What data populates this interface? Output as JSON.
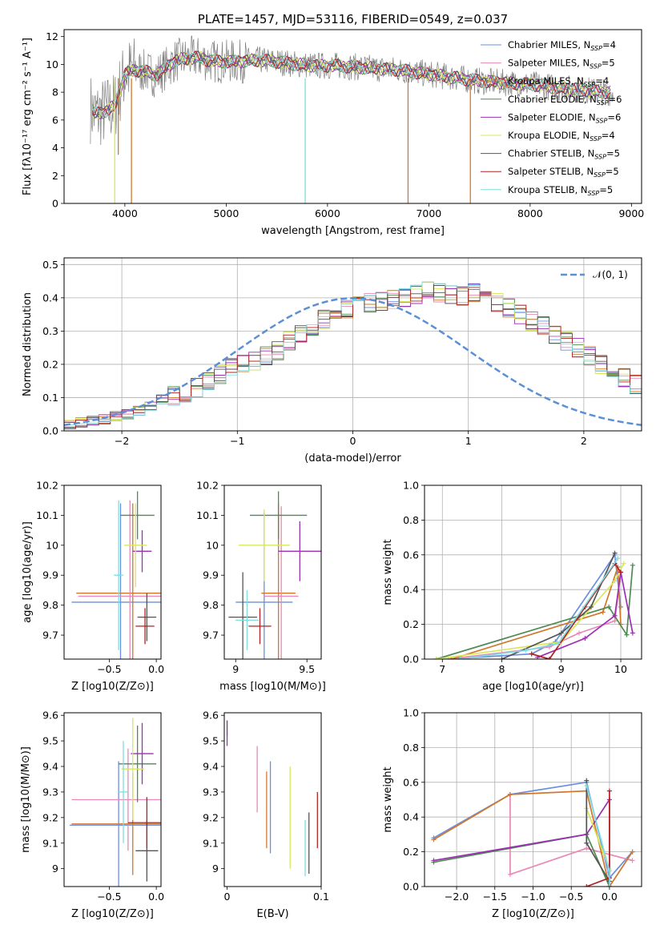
{
  "colors": {
    "c1": "#6a8fe0",
    "c2": "#e889b8",
    "c3": "#d2772a",
    "c4": "#4f8a52",
    "c5": "#9c2fb3",
    "c6": "#d8e85a",
    "c7": "#555555",
    "c8": "#b22222",
    "c9": "#7fdde0",
    "grid": "#b0b0b0",
    "gauss": "#5b8fd6"
  },
  "chart_data": [
    {
      "id": "spectrum",
      "type": "line",
      "title": "PLATE=1457, MJD=53116, FIBERID=0549, z=0.037",
      "xlabel": "wavelength [Angstrom, rest frame]",
      "ylabel": "Flux [fλ10⁻¹⁷ erg cm⁻² s⁻¹ A⁻¹]",
      "xlim": [
        3400,
        9100
      ],
      "ylim": [
        0,
        12.5
      ],
      "xticks": [
        4000,
        5000,
        6000,
        7000,
        8000,
        9000
      ],
      "yticks": [
        0,
        2,
        4,
        6,
        8,
        10,
        12
      ],
      "legend_position": "top-right",
      "series": [
        {
          "name": "Chabrier MILES, N",
          "sub": "SSP",
          "tail": "=4",
          "color": "c1"
        },
        {
          "name": "Salpeter MILES, N",
          "sub": "SSP",
          "tail": "=5",
          "color": "c2"
        },
        {
          "name": "Kroupa MILES, N",
          "sub": "SSP",
          "tail": "=4",
          "color": "c3"
        },
        {
          "name": "Chabrier ELODIE, N",
          "sub": "SSP",
          "tail": "=6",
          "color": "c4"
        },
        {
          "name": "Salpeter ELODIE, N",
          "sub": "SSP",
          "tail": "=6",
          "color": "c5"
        },
        {
          "name": "Kroupa ELODIE, N",
          "sub": "SSP",
          "tail": "=4",
          "color": "c6"
        },
        {
          "name": "Chabrier STELIB, N",
          "sub": "SSP",
          "tail": "=5",
          "color": "c7"
        },
        {
          "name": "Salpeter STELIB, N",
          "sub": "SSP",
          "tail": "=5",
          "color": "c8"
        },
        {
          "name": "Kroupa STELIB, N",
          "sub": "SSP",
          "tail": "=5",
          "color": "c9"
        }
      ],
      "continuum": {
        "x": [
          3650,
          3700,
          3800,
          3900,
          4000,
          4100,
          4200,
          4300,
          4400,
          4500,
          4700,
          4900,
          5100,
          5300,
          5500,
          5700,
          5900,
          6100,
          6300,
          6500,
          6700,
          6900,
          7100,
          7300,
          7500,
          7700,
          7900,
          8100,
          8300,
          8500,
          8700,
          8800
        ],
        "y": [
          7.0,
          6.4,
          6.6,
          7.0,
          9.3,
          9.6,
          9.5,
          9.2,
          9.7,
          10.3,
          10.5,
          10.2,
          10.2,
          10.3,
          10.2,
          10.0,
          9.9,
          9.9,
          9.8,
          9.7,
          9.6,
          9.4,
          9.2,
          9.0,
          8.8,
          8.7,
          8.6,
          8.5,
          8.3,
          8.2,
          8.0,
          8.0
        ]
      },
      "absorption_lines": [
        {
          "x": 3935,
          "y": 3.5,
          "color": "c3"
        },
        {
          "x": 4065,
          "y": 0.0,
          "color": "c3"
        },
        {
          "x": 5780,
          "y": 0.0,
          "color": "c9"
        },
        {
          "x": 6795,
          "y": 0.0,
          "color": "c3"
        },
        {
          "x": 7410,
          "y": 0.0,
          "color": "c3"
        },
        {
          "x": 3900,
          "y": 0.0,
          "color": "c6"
        }
      ]
    },
    {
      "id": "residuals",
      "type": "bar",
      "xlabel": "(data-model)/error",
      "ylabel": "Normed distribution",
      "xlim": [
        -2.5,
        2.5
      ],
      "ylim": [
        0,
        0.52
      ],
      "xticks": [
        -2,
        -1,
        0,
        1,
        2
      ],
      "yticks": [
        0.0,
        0.1,
        0.2,
        0.3,
        0.4,
        0.5
      ],
      "legend": "𝒩(0, 1)",
      "legend_position": "top-right",
      "bin_width": 0.1,
      "bins_start": -2.5,
      "histogram": [
        0.02,
        0.025,
        0.03,
        0.035,
        0.045,
        0.05,
        0.06,
        0.075,
        0.095,
        0.105,
        0.115,
        0.13,
        0.15,
        0.17,
        0.19,
        0.2,
        0.21,
        0.225,
        0.24,
        0.27,
        0.295,
        0.315,
        0.335,
        0.35,
        0.365,
        0.375,
        0.385,
        0.39,
        0.395,
        0.4,
        0.41,
        0.42,
        0.415,
        0.41,
        0.405,
        0.415,
        0.4,
        0.385,
        0.37,
        0.35,
        0.33,
        0.315,
        0.29,
        0.27,
        0.25,
        0.225,
        0.2,
        0.185,
        0.16,
        0.14
      ],
      "gaussian": {
        "mean": 0,
        "sigma": 1
      }
    },
    {
      "id": "age-vs-Z",
      "type": "scatter",
      "xlabel": "Z [log10(Z/Z⊙)]",
      "ylabel": "age [log10(age/yr)]",
      "xlim": [
        -0.98,
        0.05
      ],
      "ylim": [
        9.62,
        10.2
      ],
      "xticks": [
        -0.5,
        0.0
      ],
      "xticklabels": [
        "−0.5",
        "0.0"
      ],
      "yticks": [
        9.7,
        9.8,
        9.9,
        10.0,
        10.1,
        10.2
      ],
      "points": [
        {
          "x": -0.38,
          "y": 9.81,
          "xerr": 0.52,
          "yerr": 0.33,
          "color": "c1"
        },
        {
          "x": -0.25,
          "y": 9.84,
          "xerr": 0.6,
          "yerr": 0.3,
          "color": "c3"
        },
        {
          "x": -0.28,
          "y": 9.83,
          "xerr": 0.55,
          "yerr": 0.32,
          "color": "c2"
        },
        {
          "x": -0.2,
          "y": 10.1,
          "xerr": 0.18,
          "yerr": 0.08,
          "color": "c4"
        },
        {
          "x": -0.15,
          "y": 9.98,
          "xerr": 0.1,
          "yerr": 0.07,
          "color": "c5"
        },
        {
          "x": -0.22,
          "y": 10.0,
          "xerr": 0.12,
          "yerr": 0.14,
          "color": "c6"
        },
        {
          "x": -0.1,
          "y": 9.76,
          "xerr": 0.1,
          "yerr": 0.08,
          "color": "c7"
        },
        {
          "x": -0.12,
          "y": 9.73,
          "xerr": 0.1,
          "yerr": 0.06,
          "color": "c8"
        },
        {
          "x": -0.4,
          "y": 9.9,
          "xerr": 0.05,
          "yerr": 0.25,
          "color": "c9"
        }
      ]
    },
    {
      "id": "age-vs-mass",
      "type": "scatter",
      "xlabel": "mass [log10(M/M⊙)]",
      "ylabel": "",
      "xlim": [
        8.92,
        9.6
      ],
      "ylim": [
        9.62,
        10.2
      ],
      "xticks": [
        9.0,
        9.5
      ],
      "yticks": [
        9.7,
        9.8,
        9.9,
        10.0,
        10.1,
        10.2
      ],
      "points": [
        {
          "x": 9.2,
          "y": 9.81,
          "xerr": 0.2,
          "yerr": 0.3,
          "color": "c1"
        },
        {
          "x": 9.3,
          "y": 9.84,
          "xerr": 0.12,
          "yerr": 0.3,
          "color": "c3"
        },
        {
          "x": 9.32,
          "y": 9.83,
          "xerr": 0.12,
          "yerr": 0.3,
          "color": "c2"
        },
        {
          "x": 9.3,
          "y": 10.1,
          "xerr": 0.2,
          "yerr": 0.08,
          "color": "c4"
        },
        {
          "x": 9.45,
          "y": 9.98,
          "xerr": 0.15,
          "yerr": 0.1,
          "color": "c5"
        },
        {
          "x": 9.2,
          "y": 10.0,
          "xerr": 0.18,
          "yerr": 0.12,
          "color": "c6"
        },
        {
          "x": 9.05,
          "y": 9.76,
          "xerr": 0.1,
          "yerr": 0.15,
          "color": "c7"
        },
        {
          "x": 9.17,
          "y": 9.73,
          "xerr": 0.08,
          "yerr": 0.06,
          "color": "c8"
        },
        {
          "x": 9.08,
          "y": 9.75,
          "xerr": 0.08,
          "yerr": 0.1,
          "color": "c9"
        }
      ]
    },
    {
      "id": "weight-vs-age",
      "type": "line",
      "xlabel": "age [log10(age/yr)]",
      "ylabel": "mass weight",
      "xlim": [
        6.7,
        10.35
      ],
      "ylim": [
        0,
        1.0
      ],
      "xticks": [
        7,
        8,
        9,
        10
      ],
      "yticks": [
        0.0,
        0.2,
        0.4,
        0.6,
        0.8,
        1.0
      ],
      "series": [
        {
          "color": "c1",
          "x": [
            7.1,
            8.5,
            8.9,
            9.9,
            10.0
          ],
          "y": [
            0.0,
            0.03,
            0.1,
            0.6,
            0.3
          ]
        },
        {
          "color": "c2",
          "x": [
            7.1,
            8.8,
            9.3,
            9.9,
            10.0
          ],
          "y": [
            0.0,
            0.07,
            0.15,
            0.22,
            0.5
          ]
        },
        {
          "color": "c3",
          "x": [
            7.15,
            9.7,
            9.95,
            10.0
          ],
          "y": [
            0.0,
            0.27,
            0.53,
            0.2
          ]
        },
        {
          "color": "c4",
          "x": [
            6.9,
            9.8,
            10.1,
            10.2
          ],
          "y": [
            0.0,
            0.3,
            0.14,
            0.54
          ]
        },
        {
          "color": "c5",
          "x": [
            8.6,
            9.4,
            9.9,
            10.0,
            10.2
          ],
          "y": [
            0.01,
            0.12,
            0.25,
            0.5,
            0.15
          ]
        },
        {
          "color": "c6",
          "x": [
            6.9,
            9.0,
            9.9,
            10.05
          ],
          "y": [
            0.0,
            0.1,
            0.45,
            0.55
          ]
        },
        {
          "color": "c7",
          "x": [
            8.0,
            9.0,
            9.5,
            9.9
          ],
          "y": [
            0.0,
            0.15,
            0.3,
            0.61
          ]
        },
        {
          "color": "c8",
          "x": [
            8.5,
            8.8,
            9.4,
            9.9,
            10.0
          ],
          "y": [
            0.03,
            0.0,
            0.3,
            0.55,
            0.5
          ]
        },
        {
          "color": "c9",
          "x": [
            7.3,
            8.4,
            8.95,
            9.95
          ],
          "y": [
            0.0,
            0.05,
            0.09,
            0.58
          ]
        }
      ]
    },
    {
      "id": "mass-vs-Z",
      "type": "scatter",
      "xlabel": "Z [log10(Z/Z⊙)]",
      "ylabel": "mass [log10(M/M⊙)]",
      "xlim": [
        -0.98,
        0.05
      ],
      "ylim": [
        8.93,
        9.61
      ],
      "xticks": [
        -0.5,
        0.0
      ],
      "xticklabels": [
        "−0.5",
        "0.0"
      ],
      "yticks": [
        9.0,
        9.1,
        9.2,
        9.3,
        9.4,
        9.5,
        9.6
      ],
      "points": [
        {
          "x": -0.4,
          "y": 9.17,
          "xerr": 0.52,
          "yerr": 0.25,
          "color": "c1"
        },
        {
          "x": -0.3,
          "y": 9.27,
          "xerr": 0.6,
          "yerr": 0.2,
          "color": "c2"
        },
        {
          "x": -0.25,
          "y": 9.175,
          "xerr": 0.65,
          "yerr": 0.2,
          "color": "c3"
        },
        {
          "x": -0.2,
          "y": 9.41,
          "xerr": 0.2,
          "yerr": 0.15,
          "color": "c4"
        },
        {
          "x": -0.15,
          "y": 9.45,
          "xerr": 0.12,
          "yerr": 0.12,
          "color": "c5"
        },
        {
          "x": -0.25,
          "y": 9.39,
          "xerr": 0.12,
          "yerr": 0.2,
          "color": "c6"
        },
        {
          "x": -0.1,
          "y": 9.07,
          "xerr": 0.12,
          "yerr": 0.12,
          "color": "c7"
        },
        {
          "x": -0.1,
          "y": 9.18,
          "xerr": 0.2,
          "yerr": 0.1,
          "color": "c8"
        },
        {
          "x": -0.35,
          "y": 9.3,
          "xerr": 0.05,
          "yerr": 0.2,
          "color": "c9"
        }
      ]
    },
    {
      "id": "mass-vs-ebv",
      "type": "scatter",
      "xlabel": "E(B-V)",
      "ylabel": "",
      "xlim": [
        -0.003,
        0.1
      ],
      "ylim": [
        8.93,
        9.61
      ],
      "xticks": [
        0.0,
        0.1
      ],
      "yticks": [
        9.0,
        9.1,
        9.2,
        9.3,
        9.4,
        9.5,
        9.6
      ],
      "points": [
        {
          "x": 0.046,
          "y": 9.24,
          "xerr": 0,
          "yerr": 0.18,
          "color": "c1"
        },
        {
          "x": 0.032,
          "y": 9.35,
          "xerr": 0,
          "yerr": 0.13,
          "color": "c2"
        },
        {
          "x": 0.042,
          "y": 9.23,
          "xerr": 0,
          "yerr": 0.15,
          "color": "c3"
        },
        {
          "x": 0.0,
          "y": 9.55,
          "xerr": 0,
          "yerr": 0.03,
          "color": "c4"
        },
        {
          "x": 0.0,
          "y": 9.53,
          "xerr": 0,
          "yerr": 0.05,
          "color": "c5"
        },
        {
          "x": 0.067,
          "y": 9.2,
          "xerr": 0,
          "yerr": 0.2,
          "color": "c6"
        },
        {
          "x": 0.087,
          "y": 9.1,
          "xerr": 0,
          "yerr": 0.12,
          "color": "c7"
        },
        {
          "x": 0.096,
          "y": 9.19,
          "xerr": 0,
          "yerr": 0.11,
          "color": "c8"
        },
        {
          "x": 0.083,
          "y": 9.08,
          "xerr": 0,
          "yerr": 0.11,
          "color": "c9"
        }
      ]
    },
    {
      "id": "weight-vs-Z",
      "type": "line",
      "xlabel": "Z [log10(Z/Z⊙)]",
      "ylabel": "mass weight",
      "xlim": [
        -2.42,
        0.42
      ],
      "ylim": [
        0,
        1.0
      ],
      "xticks": [
        -2.0,
        -1.5,
        -1.0,
        -0.5,
        0.0
      ],
      "xticklabels": [
        "−2.0",
        "−1.5",
        "−1.0",
        "−0.5",
        "0.0"
      ],
      "yticks": [
        0.0,
        0.2,
        0.4,
        0.6,
        0.8,
        1.0
      ],
      "series": [
        {
          "color": "c1",
          "x": [
            -2.3,
            -1.3,
            -0.3,
            0.0,
            0.3
          ],
          "y": [
            0.28,
            0.53,
            0.6,
            0.05,
            0.2
          ]
        },
        {
          "color": "c2",
          "x": [
            -1.3,
            -1.3,
            -0.3,
            0.3
          ],
          "y": [
            0.53,
            0.07,
            0.22,
            0.15
          ]
        },
        {
          "color": "c3",
          "x": [
            -2.3,
            -1.3,
            -0.3,
            0.0,
            0.3
          ],
          "y": [
            0.27,
            0.53,
            0.55,
            0.0,
            0.2
          ]
        },
        {
          "color": "c4",
          "x": [
            -2.3,
            -0.3,
            0.0
          ],
          "y": [
            0.14,
            0.3,
            0.0
          ]
        },
        {
          "color": "c5",
          "x": [
            -2.3,
            -0.3,
            0.0,
            0.0
          ],
          "y": [
            0.15,
            0.3,
            0.5,
            0.0
          ]
        },
        {
          "color": "c6",
          "x": [
            -0.3,
            0.0
          ],
          "y": [
            0.45,
            0.1
          ]
        },
        {
          "color": "c7",
          "x": [
            -0.3,
            -0.3,
            0.0
          ],
          "y": [
            0.61,
            0.25,
            0.03
          ]
        },
        {
          "color": "c8",
          "x": [
            -0.3,
            0.0,
            0.0
          ],
          "y": [
            0.0,
            0.05,
            0.55
          ]
        },
        {
          "color": "c9",
          "x": [
            -0.3,
            0.0,
            0.0
          ],
          "y": [
            0.58,
            0.09,
            0.0
          ]
        }
      ]
    }
  ]
}
